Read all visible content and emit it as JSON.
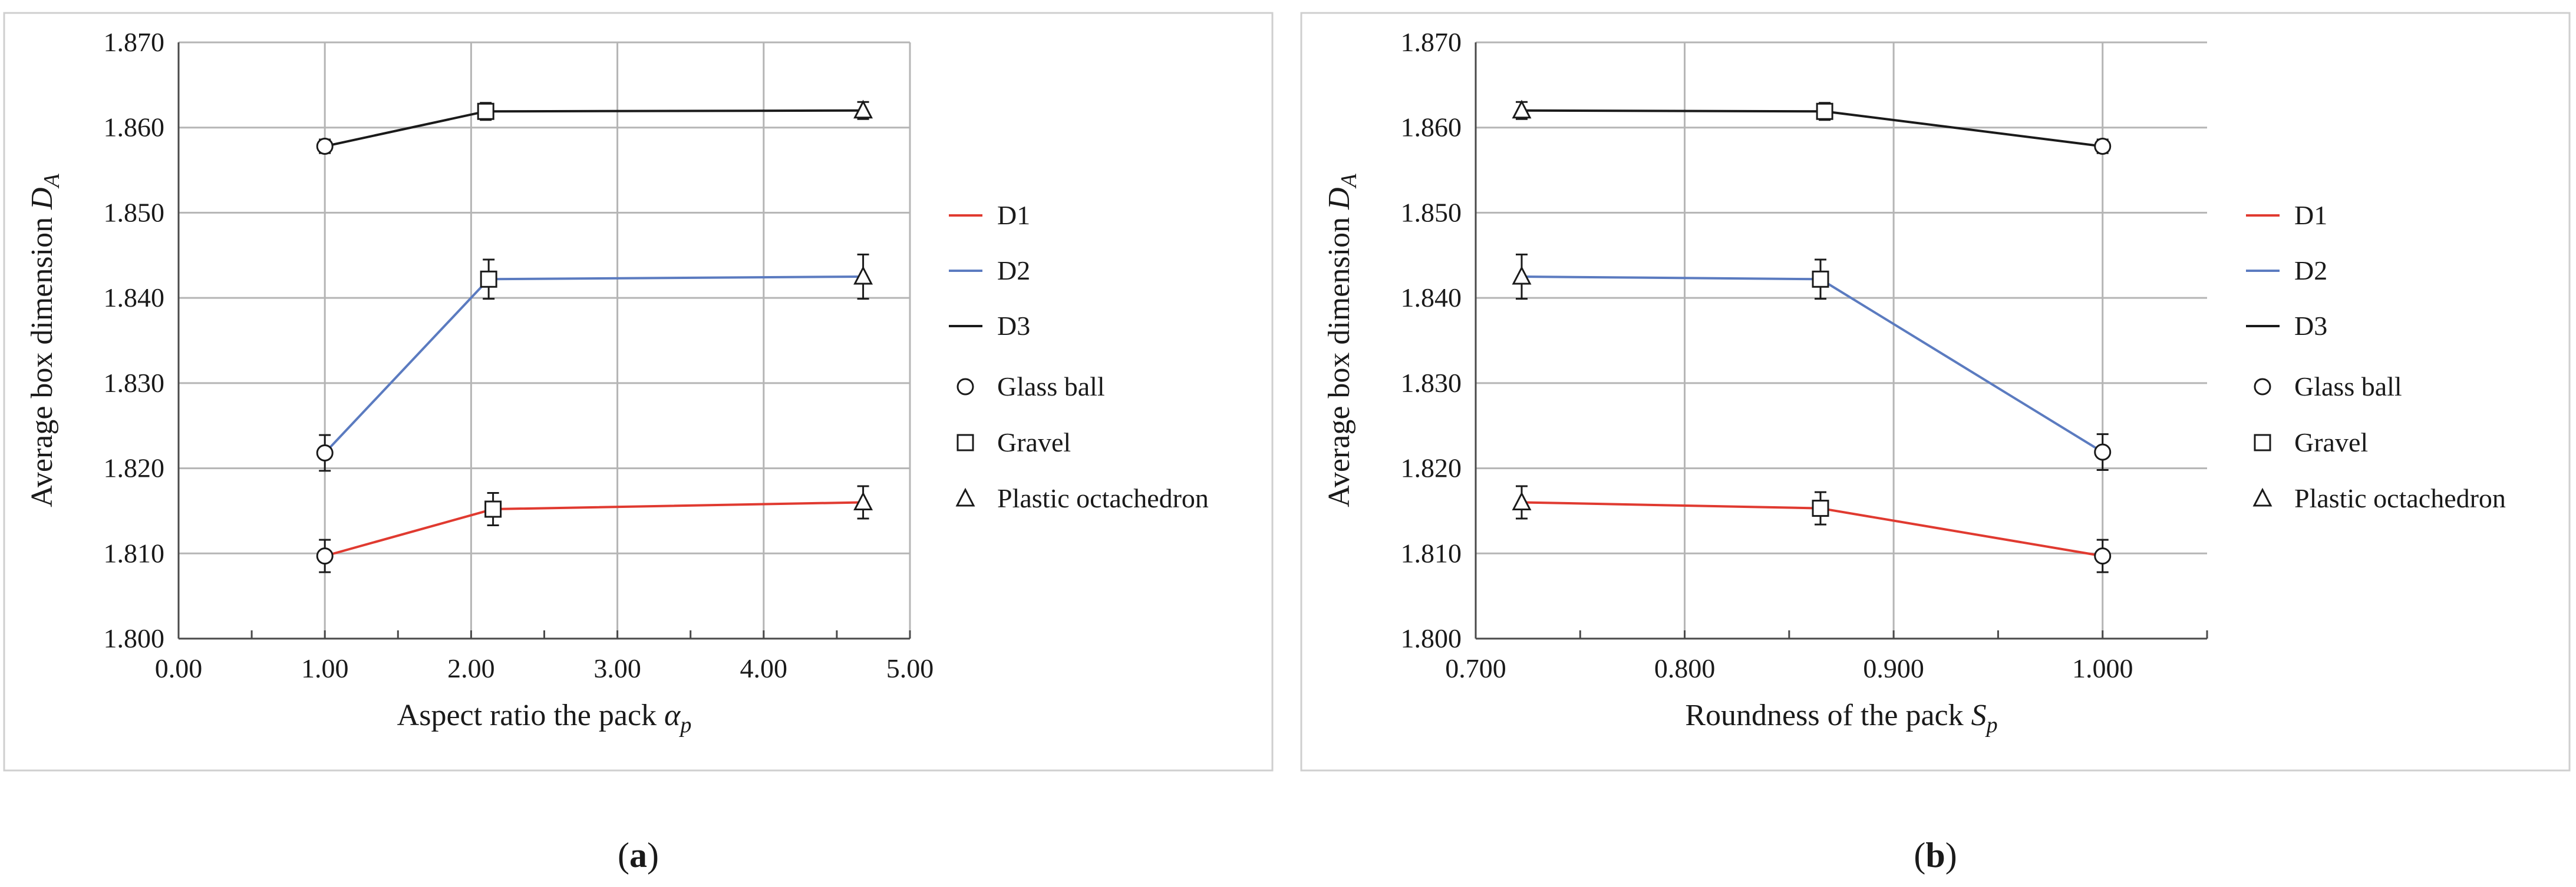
{
  "chart_data": [
    {
      "type": "line",
      "panel_label": "a",
      "ylabel_text": "Average box dimension",
      "ylabel_sym": "D",
      "ylabel_sub": "A",
      "xlabel_text": "Aspect ratio the pack",
      "xlabel_sym": "α",
      "xlabel_sub": "p",
      "xlim": [
        0,
        5
      ],
      "ylim": [
        1.8,
        1.87
      ],
      "xticks": [
        0,
        1,
        2,
        3,
        4,
        5
      ],
      "xtick_labels": [
        "0.00",
        "1.00",
        "2.00",
        "3.00",
        "4.00",
        "5.00"
      ],
      "yticks": [
        1.8,
        1.81,
        1.82,
        1.83,
        1.84,
        1.85,
        1.86,
        1.87
      ],
      "ytick_labels": [
        "1.800",
        "1.810",
        "1.820",
        "1.830",
        "1.840",
        "1.850",
        "1.860",
        "1.870"
      ],
      "x_minor_step": 0.5,
      "grid": true,
      "legend_position": "right",
      "series": [
        {
          "name": "D1",
          "color": "#e03a30",
          "x": [
            1.0,
            2.15,
            4.68
          ],
          "y": [
            1.8097,
            1.8152,
            1.816
          ],
          "err": [
            0.0019,
            0.0019,
            0.0019
          ],
          "markers": [
            "circle",
            "square",
            "triangle"
          ]
        },
        {
          "name": "D2",
          "color": "#5b7bc0",
          "x": [
            1.0,
            2.12,
            4.68
          ],
          "y": [
            1.8218,
            1.8422,
            1.8425
          ],
          "err": [
            0.0021,
            0.0023,
            0.0026
          ],
          "markers": [
            "circle",
            "square",
            "triangle"
          ]
        },
        {
          "name": "D3",
          "color": "#1a1a1a",
          "x": [
            1.0,
            2.1,
            4.68
          ],
          "y": [
            1.8578,
            1.8619,
            1.862
          ],
          "err": [
            0.0008,
            0.001,
            0.001
          ],
          "markers": [
            "circle",
            "square",
            "triangle"
          ]
        }
      ],
      "marker_legend": [
        {
          "symbol": "circle",
          "label": "Glass ball"
        },
        {
          "symbol": "square",
          "label": "Gravel"
        },
        {
          "symbol": "triangle",
          "label": "Plastic octachedron"
        }
      ]
    },
    {
      "type": "line",
      "panel_label": "b",
      "ylabel_text": "Average box dimension",
      "ylabel_sym": "D",
      "ylabel_sub": "A",
      "xlabel_text": "Roundness of the pack",
      "xlabel_sym": "S",
      "xlabel_sub": "p",
      "xlim": [
        0.7,
        1.05
      ],
      "ylim": [
        1.8,
        1.87
      ],
      "xticks": [
        0.7,
        0.8,
        0.9,
        1.0
      ],
      "xtick_labels": [
        "0.700",
        "0.800",
        "0.900",
        "1.000"
      ],
      "yticks": [
        1.8,
        1.81,
        1.82,
        1.83,
        1.84,
        1.85,
        1.86,
        1.87
      ],
      "ytick_labels": [
        "1.800",
        "1.810",
        "1.820",
        "1.830",
        "1.840",
        "1.850",
        "1.860",
        "1.870"
      ],
      "x_minor_step": 0.05,
      "grid": true,
      "legend_position": "right",
      "series": [
        {
          "name": "D1",
          "color": "#e03a30",
          "x": [
            0.722,
            0.865,
            1.0
          ],
          "y": [
            1.816,
            1.8153,
            1.8097
          ],
          "err": [
            0.0019,
            0.0019,
            0.0019
          ],
          "markers": [
            "triangle",
            "square",
            "circle"
          ]
        },
        {
          "name": "D2",
          "color": "#5b7bc0",
          "x": [
            0.722,
            0.865,
            1.0
          ],
          "y": [
            1.8425,
            1.8422,
            1.8219
          ],
          "err": [
            0.0026,
            0.0023,
            0.0021
          ],
          "markers": [
            "triangle",
            "square",
            "circle"
          ]
        },
        {
          "name": "D3",
          "color": "#1a1a1a",
          "x": [
            0.722,
            0.867,
            1.0
          ],
          "y": [
            1.862,
            1.8619,
            1.8578
          ],
          "err": [
            0.001,
            0.001,
            0.0008
          ],
          "markers": [
            "triangle",
            "square",
            "circle"
          ]
        }
      ],
      "marker_legend": [
        {
          "symbol": "circle",
          "label": "Glass ball"
        },
        {
          "symbol": "square",
          "label": "Gravel"
        },
        {
          "symbol": "triangle",
          "label": "Plastic octachedron"
        }
      ]
    }
  ]
}
